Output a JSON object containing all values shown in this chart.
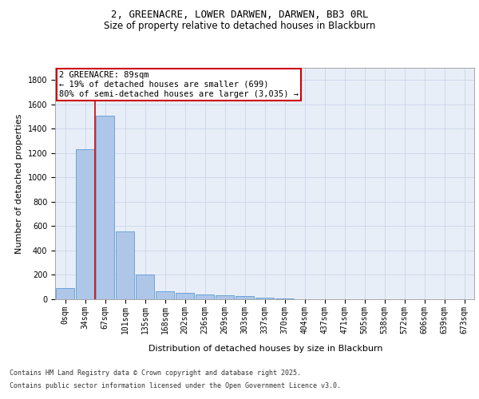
{
  "title_line1": "2, GREENACRE, LOWER DARWEN, DARWEN, BB3 0RL",
  "title_line2": "Size of property relative to detached houses in Blackburn",
  "xlabel": "Distribution of detached houses by size in Blackburn",
  "ylabel": "Number of detached properties",
  "categories": [
    "0sqm",
    "34sqm",
    "67sqm",
    "101sqm",
    "135sqm",
    "168sqm",
    "202sqm",
    "236sqm",
    "269sqm",
    "303sqm",
    "337sqm",
    "370sqm",
    "404sqm",
    "437sqm",
    "471sqm",
    "505sqm",
    "538sqm",
    "572sqm",
    "606sqm",
    "639sqm",
    "673sqm"
  ],
  "values": [
    95,
    1235,
    1510,
    560,
    205,
    65,
    50,
    42,
    30,
    23,
    10,
    5,
    3,
    0,
    0,
    0,
    0,
    0,
    0,
    0,
    0
  ],
  "bar_color": "#aec6e8",
  "bar_edge_color": "#5b9bd5",
  "vline_color": "#cc0000",
  "annotation_text": "2 GREENACRE: 89sqm\n← 19% of detached houses are smaller (699)\n80% of semi-detached houses are larger (3,035) →",
  "annotation_box_color": "#cc0000",
  "ylim": [
    0,
    1900
  ],
  "yticks": [
    0,
    200,
    400,
    600,
    800,
    1000,
    1200,
    1400,
    1600,
    1800
  ],
  "grid_color": "#ccd6e8",
  "background_color": "#e8eef8",
  "footer_line1": "Contains HM Land Registry data © Crown copyright and database right 2025.",
  "footer_line2": "Contains public sector information licensed under the Open Government Licence v3.0.",
  "title_fontsize": 9,
  "subtitle_fontsize": 8.5,
  "axis_label_fontsize": 8,
  "tick_fontsize": 7,
  "annotation_fontsize": 7.5,
  "footer_fontsize": 6
}
